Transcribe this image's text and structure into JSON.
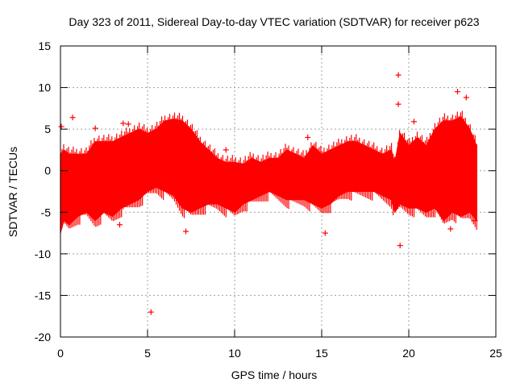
{
  "colors": {
    "series": "#ff0000",
    "axis": "#000000",
    "grid": "#a0a0a0",
    "background": "#ffffff"
  },
  "chart_data": {
    "type": "scatter",
    "title": "Day 323 of 2011, Sidereal Day-to-day VTEC variation (SDTVAR) for receiver p623",
    "xlabel": "GPS time / hours",
    "ylabel": "SDTVAR / TECUs",
    "xlim": [
      0,
      25
    ],
    "ylim": [
      -20,
      15
    ],
    "xticks": [
      0,
      5,
      10,
      15,
      20,
      25
    ],
    "yticks": [
      -20,
      -15,
      -10,
      -5,
      0,
      5,
      10,
      15
    ],
    "xtick_labels": [
      "0",
      "5",
      "10",
      "15",
      "20",
      "25"
    ],
    "ytick_labels": [
      "-20",
      "-15",
      "-10",
      "-5",
      "0",
      "5",
      "10",
      "15"
    ],
    "grid": true,
    "marker": "+",
    "series": [
      {
        "name": "SDTVAR",
        "envelope": {
          "x": [
            0.0,
            0.2,
            0.5,
            1.0,
            1.5,
            2.0,
            2.5,
            3.0,
            3.5,
            4.0,
            4.5,
            5.0,
            5.5,
            6.0,
            6.5,
            7.0,
            7.5,
            8.0,
            8.5,
            9.0,
            9.5,
            10.0,
            10.5,
            11.0,
            11.5,
            12.0,
            12.5,
            13.0,
            13.5,
            14.0,
            14.5,
            15.0,
            15.5,
            16.0,
            16.5,
            17.0,
            17.5,
            18.0,
            18.5,
            19.0,
            19.2,
            19.5,
            20.0,
            20.5,
            21.0,
            21.5,
            22.0,
            22.5,
            23.0,
            23.5,
            23.9
          ],
          "upper": [
            2.0,
            2.5,
            2.0,
            2.0,
            2.0,
            3.5,
            3.5,
            3.5,
            4.0,
            4.5,
            5.0,
            4.5,
            5.0,
            6.0,
            6.2,
            6.0,
            5.0,
            3.5,
            2.5,
            1.5,
            1.0,
            1.0,
            0.8,
            1.5,
            1.0,
            1.5,
            1.5,
            2.5,
            2.0,
            1.5,
            3.0,
            2.0,
            2.5,
            3.0,
            3.5,
            3.5,
            3.0,
            2.5,
            2.0,
            2.5,
            1.0,
            4.5,
            3.0,
            4.0,
            3.0,
            5.0,
            6.0,
            6.0,
            6.5,
            5.0,
            3.0
          ],
          "lower": [
            -7.5,
            -6.0,
            -6.5,
            -5.5,
            -5.0,
            -6.0,
            -5.0,
            -5.5,
            -4.5,
            -4.0,
            -3.5,
            -2.5,
            -2.0,
            -2.5,
            -3.0,
            -4.5,
            -5.0,
            -4.5,
            -4.0,
            -4.0,
            -4.5,
            -5.0,
            -4.0,
            -3.5,
            -3.0,
            -2.5,
            -3.0,
            -3.5,
            -3.5,
            -3.5,
            -4.0,
            -4.5,
            -4.0,
            -3.0,
            -2.5,
            -2.5,
            -2.5,
            -2.5,
            -3.0,
            -3.5,
            -5.0,
            -4.0,
            -4.5,
            -4.5,
            -5.0,
            -4.5,
            -6.0,
            -5.0,
            -5.5,
            -5.0,
            -6.0
          ]
        },
        "outliers": [
          {
            "x": 0.05,
            "y": 5.3
          },
          {
            "x": 0.7,
            "y": 6.4
          },
          {
            "x": 2.0,
            "y": 5.1
          },
          {
            "x": 3.4,
            "y": -6.5
          },
          {
            "x": 3.6,
            "y": -4.3
          },
          {
            "x": 3.9,
            "y": 5.6
          },
          {
            "x": 3.6,
            "y": 5.7
          },
          {
            "x": 5.2,
            "y": -17.0
          },
          {
            "x": 7.2,
            "y": -7.3
          },
          {
            "x": 9.5,
            "y": 2.5
          },
          {
            "x": 14.2,
            "y": 4.0
          },
          {
            "x": 15.2,
            "y": -7.5
          },
          {
            "x": 19.4,
            "y": 11.5
          },
          {
            "x": 19.4,
            "y": 8.0
          },
          {
            "x": 19.5,
            "y": -9.0
          },
          {
            "x": 20.3,
            "y": 5.9
          },
          {
            "x": 22.4,
            "y": -7.0
          },
          {
            "x": 22.8,
            "y": 9.5
          },
          {
            "x": 23.3,
            "y": 8.8
          },
          {
            "x": 23.8,
            "y": -6.0
          }
        ]
      }
    ]
  }
}
